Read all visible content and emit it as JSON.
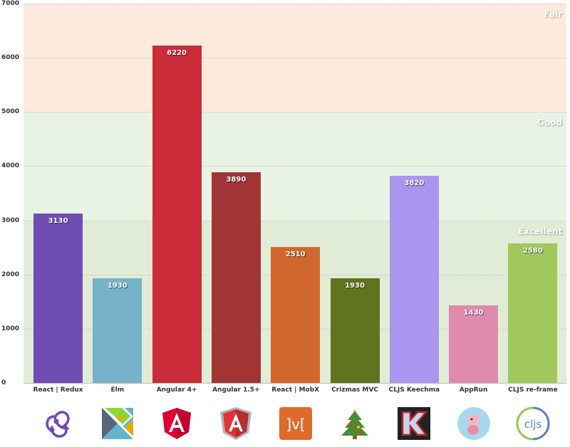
{
  "chart_data": {
    "type": "bar",
    "title": "",
    "xlabel": "",
    "ylabel": "",
    "ylim": [
      0,
      7000
    ],
    "yticks": [
      0,
      1000,
      2000,
      3000,
      4000,
      5000,
      6000,
      7000
    ],
    "grid": true,
    "legend": null,
    "categories": [
      "React | Redux",
      "Elm",
      "Angular 4+",
      "Angular 1.5+",
      "React | MobX",
      "Crizmas MVC",
      "CLJS Keechma",
      "AppRun",
      "CLJS re-frame"
    ],
    "values": [
      3130,
      1930,
      6220,
      3890,
      2510,
      1930,
      3820,
      1430,
      2580
    ],
    "colors": [
      "#6f4db3",
      "#76b2c8",
      "#cc2b39",
      "#a23535",
      "#d2672e",
      "#62731f",
      "#a996ee",
      "#de8bad",
      "#a1c85d"
    ],
    "bands": [
      {
        "label": "Excellent",
        "from": 0,
        "to": 3000,
        "color": "#e0ecd6"
      },
      {
        "label": "Good",
        "from": 3000,
        "to": 5000,
        "color": "#e8f3e4"
      },
      {
        "label": "Fair",
        "from": 5000,
        "to": 7000,
        "color": "#fcebdc"
      }
    ],
    "logos": [
      "redux-logo",
      "elm-logo",
      "angular-logo",
      "angularjs-logo",
      "mobx-logo",
      "christmas-tree-logo",
      "keechma-logo",
      "apprun-logo",
      "cljs-logo"
    ]
  }
}
